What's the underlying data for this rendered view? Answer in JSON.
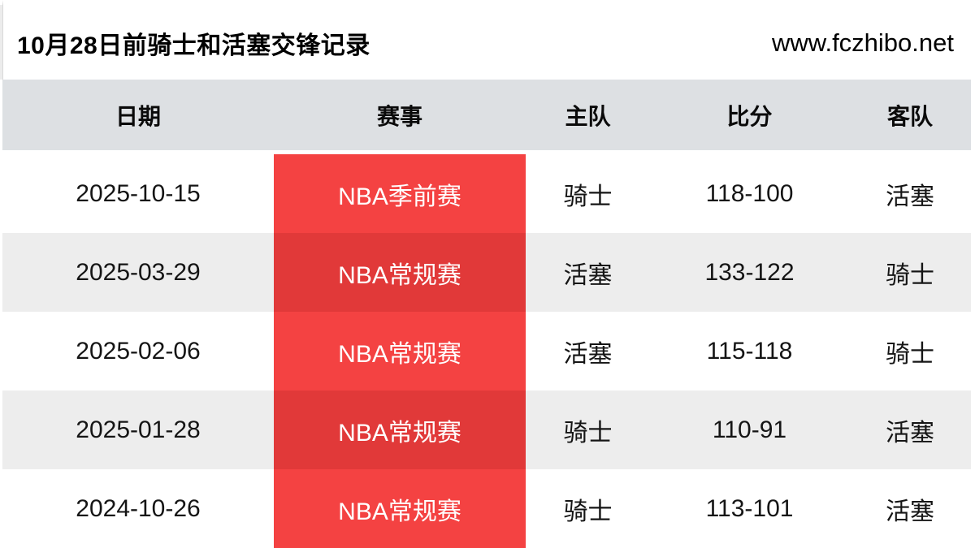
{
  "page": {
    "title": "10月28日前骑士和活塞交锋记录",
    "site": "www.fczhibo.net"
  },
  "table": {
    "headers": [
      "日期",
      "赛事",
      "主队",
      "比分",
      "客队"
    ],
    "rows": [
      {
        "date": "2025-10-15",
        "event": "NBA季前赛",
        "home": "骑士",
        "score": "118-100",
        "away": "活塞"
      },
      {
        "date": "2025-03-29",
        "event": "NBA常规赛",
        "home": "活塞",
        "score": "133-122",
        "away": "骑士"
      },
      {
        "date": "2025-02-06",
        "event": "NBA常规赛",
        "home": "活塞",
        "score": "115-118",
        "away": "骑士"
      },
      {
        "date": "2025-01-28",
        "event": "NBA常规赛",
        "home": "骑士",
        "score": "110-91",
        "away": "活塞"
      },
      {
        "date": "2024-10-26",
        "event": "NBA常规赛",
        "home": "骑士",
        "score": "113-101",
        "away": "活塞"
      }
    ]
  },
  "colors": {
    "event_bg": "#f44242",
    "event_bg_dark": "#e13939",
    "header_bg": "#dde0e3",
    "row_alt_bg": "#ededed"
  }
}
